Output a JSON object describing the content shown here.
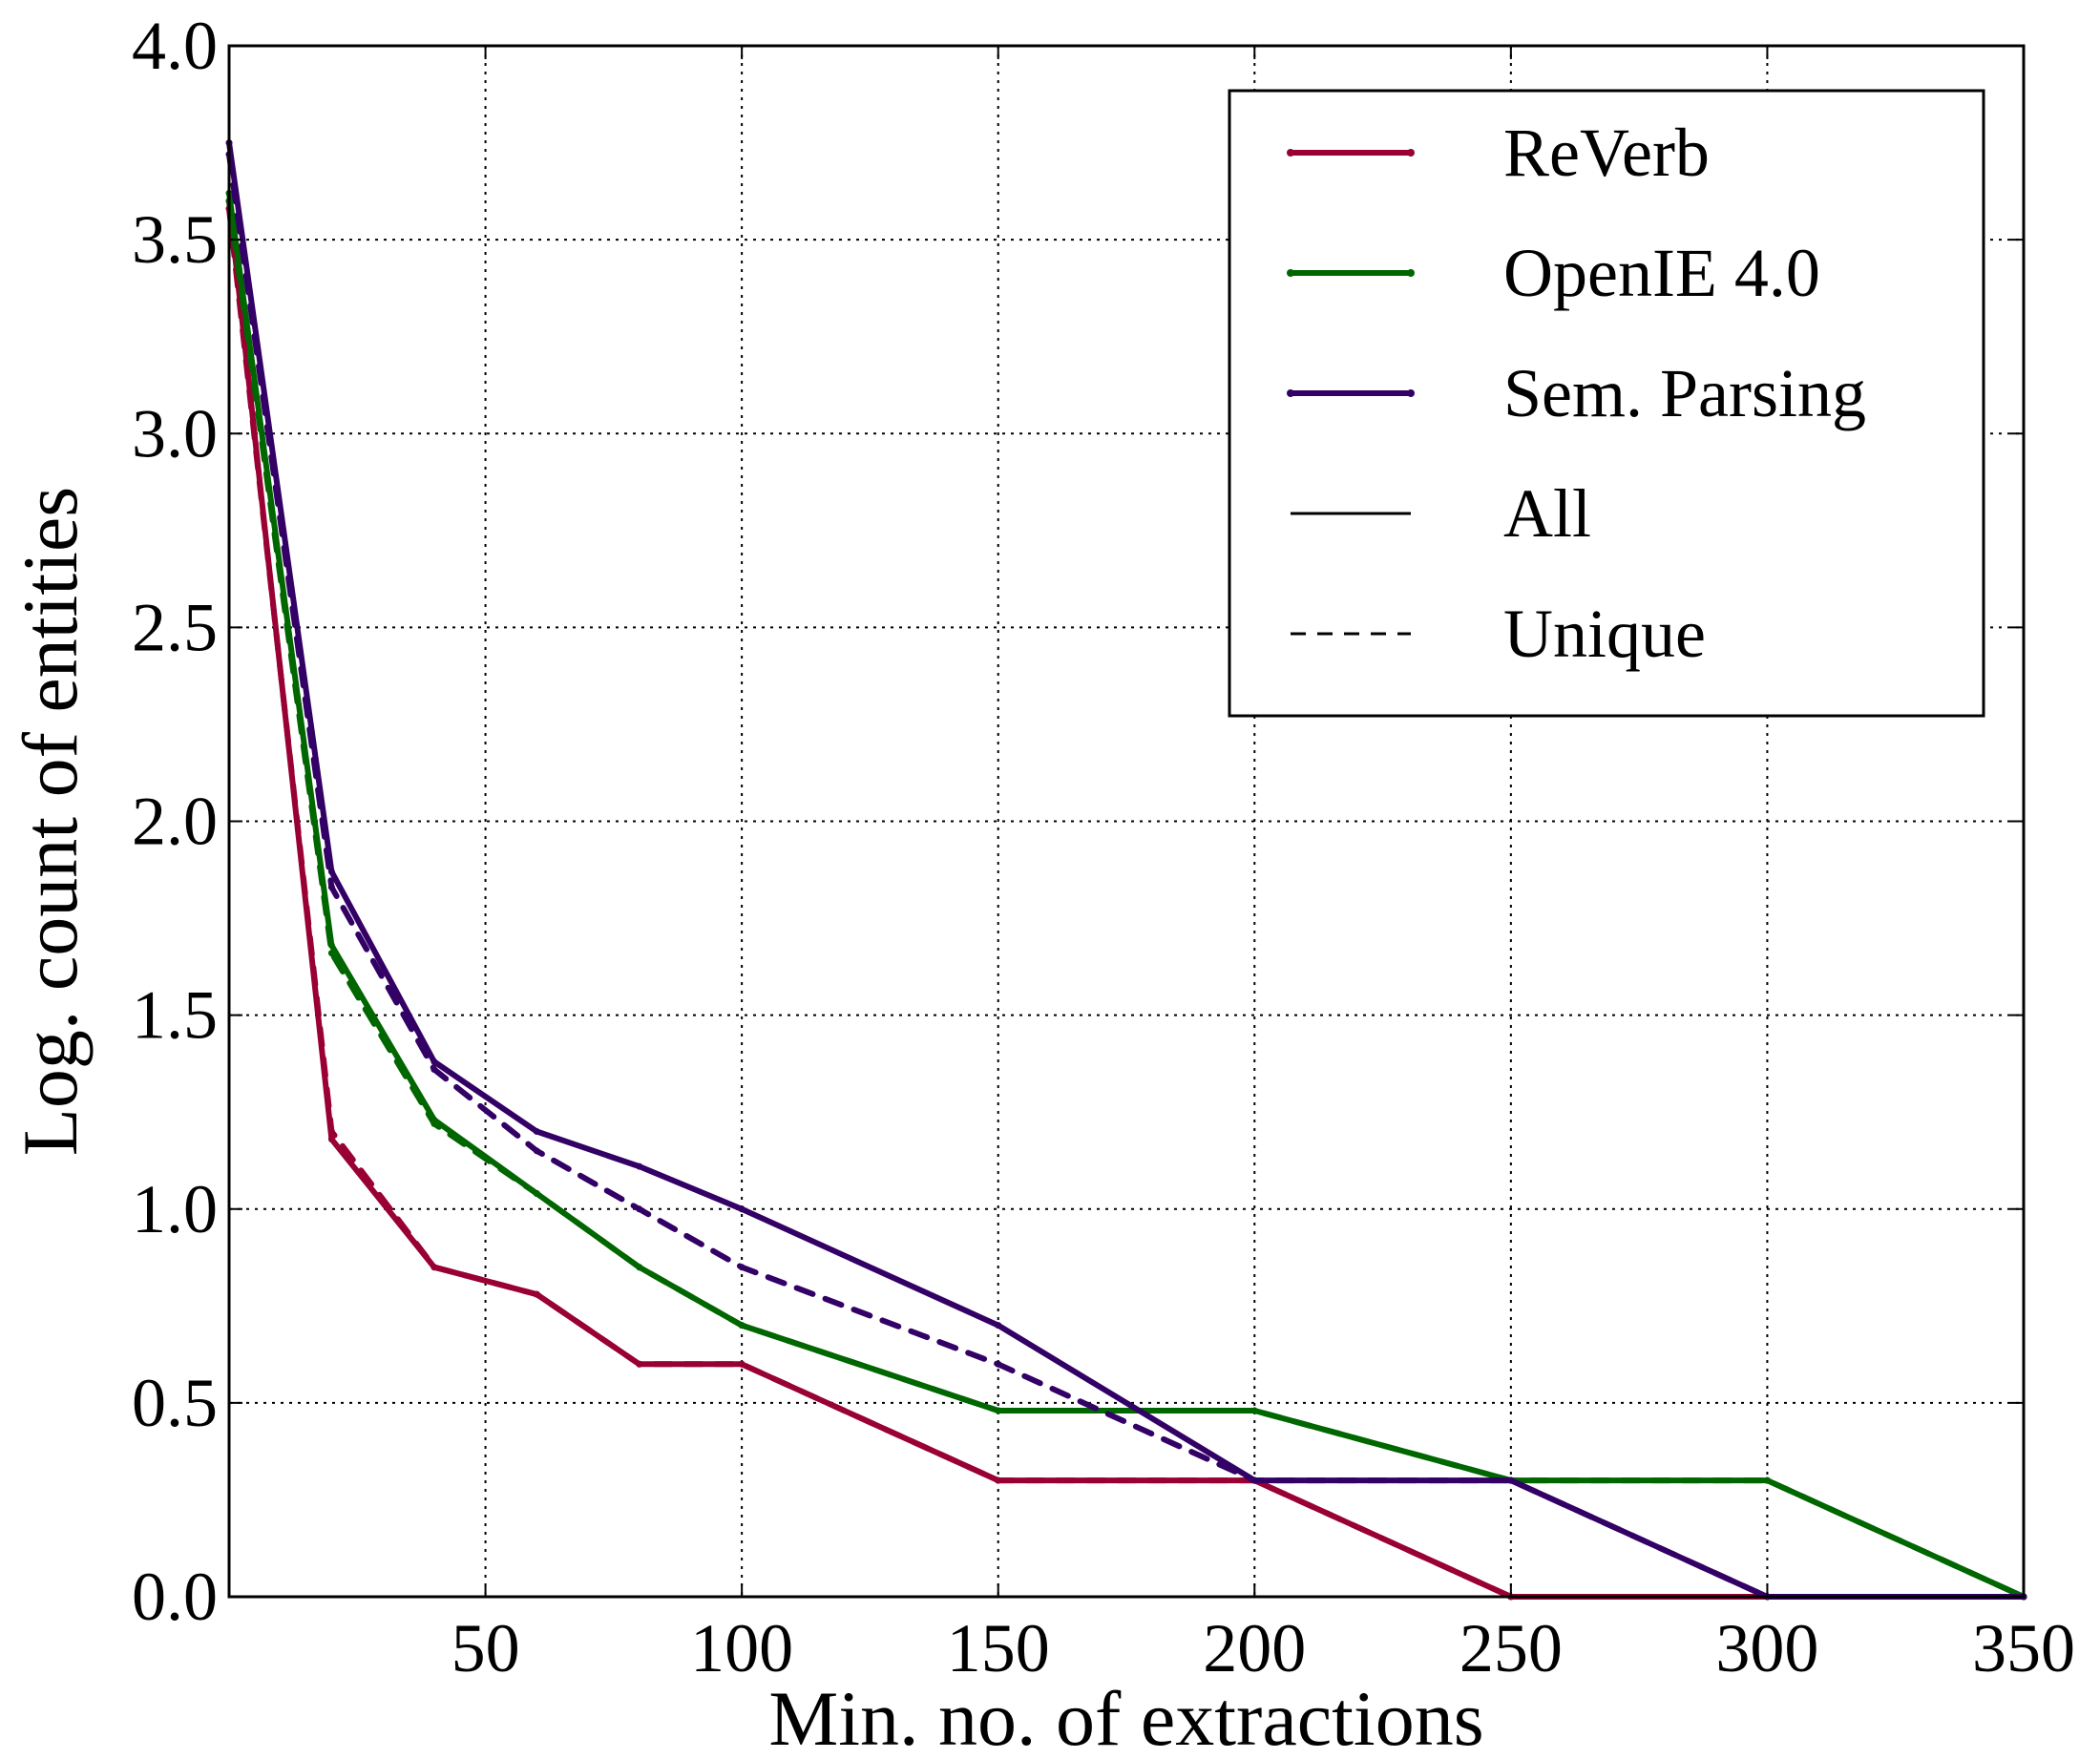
{
  "chart_data": {
    "type": "line",
    "xlabel": "Min. no. of extractions",
    "ylabel": "Log. count of entities",
    "xlim": [
      0,
      350
    ],
    "ylim": [
      0.0,
      4.0
    ],
    "xticks": [
      50,
      100,
      150,
      200,
      250,
      300,
      350
    ],
    "xtick_labels": [
      "50",
      "100",
      "150",
      "200",
      "250",
      "300",
      "350"
    ],
    "yticks": [
      0.0,
      0.5,
      1.0,
      1.5,
      2.0,
      2.5,
      3.0,
      3.5,
      4.0
    ],
    "ytick_labels": [
      "0.0",
      "0.5",
      "1.0",
      "1.5",
      "2.0",
      "2.5",
      "3.0",
      "3.5",
      "4.0"
    ],
    "grid": true,
    "legend_position": "top-right",
    "legend": [
      {
        "label": "ReVerb",
        "color": "#990033",
        "style": "solid"
      },
      {
        "label": "OpenIE 4.0",
        "color": "#006600",
        "style": "solid"
      },
      {
        "label": "Sem. Parsing",
        "color": "#330066",
        "style": "solid"
      },
      {
        "label": "All",
        "color": "#000000",
        "style": "solid"
      },
      {
        "label": "Unique",
        "color": "#000000",
        "style": "dashed"
      }
    ],
    "series": [
      {
        "system": "ReVerb",
        "variant": "All",
        "color": "#990033",
        "dash": false,
        "x": [
          0,
          20,
          40,
          60,
          80,
          100,
          150,
          200,
          250,
          300,
          350
        ],
        "y": [
          3.6,
          1.18,
          0.85,
          0.78,
          0.6,
          0.6,
          0.3,
          0.3,
          0.0,
          0.0,
          0.0
        ]
      },
      {
        "system": "ReVerb",
        "variant": "Unique",
        "color": "#990033",
        "dash": true,
        "x": [
          0,
          20,
          40,
          60,
          80,
          100,
          150,
          200,
          250,
          300,
          350
        ],
        "y": [
          3.58,
          1.2,
          0.85,
          0.78,
          0.6,
          0.6,
          0.3,
          0.3,
          0.0,
          0.0,
          0.0
        ]
      },
      {
        "system": "OpenIE 4.0",
        "variant": "All",
        "color": "#006600",
        "dash": false,
        "x": [
          0,
          20,
          40,
          60,
          80,
          100,
          150,
          200,
          250,
          300,
          350
        ],
        "y": [
          3.62,
          1.68,
          1.23,
          1.04,
          0.85,
          0.7,
          0.48,
          0.48,
          0.3,
          0.3,
          0.0
        ]
      },
      {
        "system": "OpenIE 4.0",
        "variant": "Unique",
        "color": "#006600",
        "dash": true,
        "x": [
          0,
          20,
          40,
          60,
          80,
          100,
          150,
          200,
          250,
          300,
          350
        ],
        "y": [
          3.6,
          1.66,
          1.22,
          1.04,
          0.85,
          0.7,
          0.48,
          0.48,
          0.3,
          0.3,
          0.0
        ]
      },
      {
        "system": "Sem. Parsing",
        "variant": "Unique",
        "color": "#330066",
        "dash": true,
        "x": [
          0,
          20,
          40,
          60,
          80,
          100,
          150,
          200,
          250,
          300,
          350
        ],
        "y": [
          3.72,
          1.83,
          1.36,
          1.15,
          1.0,
          0.85,
          0.6,
          0.3,
          0.3,
          0.0,
          0.0
        ]
      },
      {
        "system": "Sem. Parsing",
        "variant": "All",
        "color": "#330066",
        "dash": false,
        "x": [
          0,
          20,
          40,
          60,
          80,
          100,
          150,
          200,
          250,
          300,
          350
        ],
        "y": [
          3.75,
          1.87,
          1.38,
          1.2,
          1.11,
          1.0,
          0.7,
          0.3,
          0.3,
          0.0,
          0.0
        ]
      }
    ]
  }
}
